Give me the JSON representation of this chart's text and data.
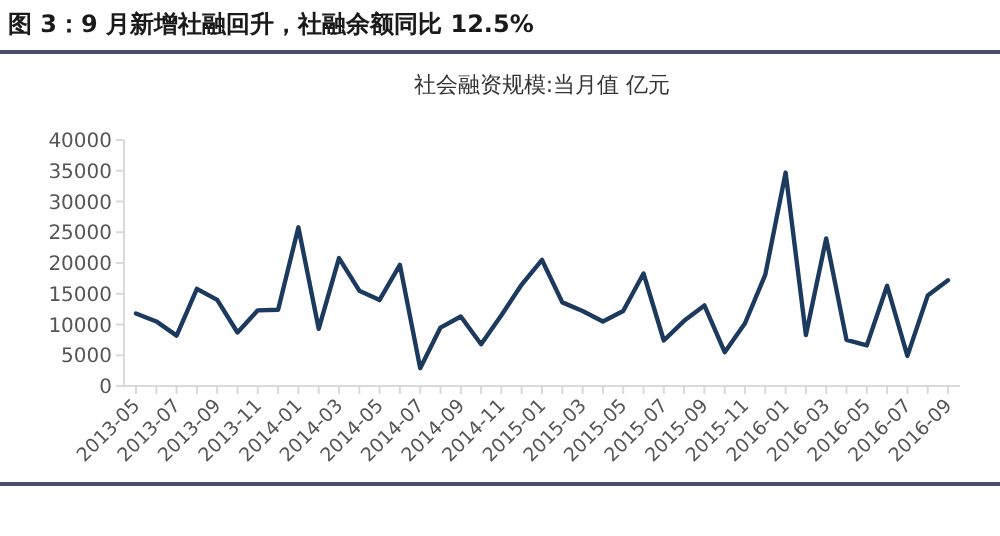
{
  "chart_data": {
    "type": "line",
    "title": "图 3：9 月新增社融回升，社融余额同比 12.5%",
    "subtitle": "社会融资规模:当月值 亿元",
    "categories": [
      "2013-05",
      null,
      "2013-07",
      null,
      "2013-09",
      null,
      "2013-11",
      null,
      "2014-01",
      null,
      "2014-03",
      null,
      "2014-05",
      null,
      "2014-07",
      null,
      "2014-09",
      null,
      "2014-11",
      null,
      "2015-01",
      null,
      "2015-03",
      null,
      "2015-05",
      null,
      "2015-07",
      null,
      "2015-09",
      null,
      "2015-11",
      null,
      "2016-01",
      null,
      "2016-03",
      null,
      "2016-05",
      null,
      "2016-07",
      null,
      "2016-09"
    ],
    "series": [
      {
        "color": "#1c3a5e",
        "values": [
          11800,
          10500,
          8200,
          15800,
          14000,
          8700,
          12300,
          12400,
          25800,
          9300,
          20800,
          15500,
          14000,
          19700,
          2900,
          9500,
          11300,
          6800,
          11500,
          16500,
          20500,
          13600,
          12200,
          10500,
          12200,
          18300,
          7400,
          10600,
          13100,
          5500,
          10200,
          18100,
          34700,
          8300,
          24000,
          7500,
          6600,
          16300,
          4900,
          14700,
          17200
        ]
      }
    ],
    "ylim": [
      0,
      40000
    ],
    "yticks": [
      0,
      5000,
      10000,
      15000,
      20000,
      25000,
      30000,
      35000,
      40000
    ],
    "grid": false,
    "marker": "none",
    "line_style": "solid"
  }
}
